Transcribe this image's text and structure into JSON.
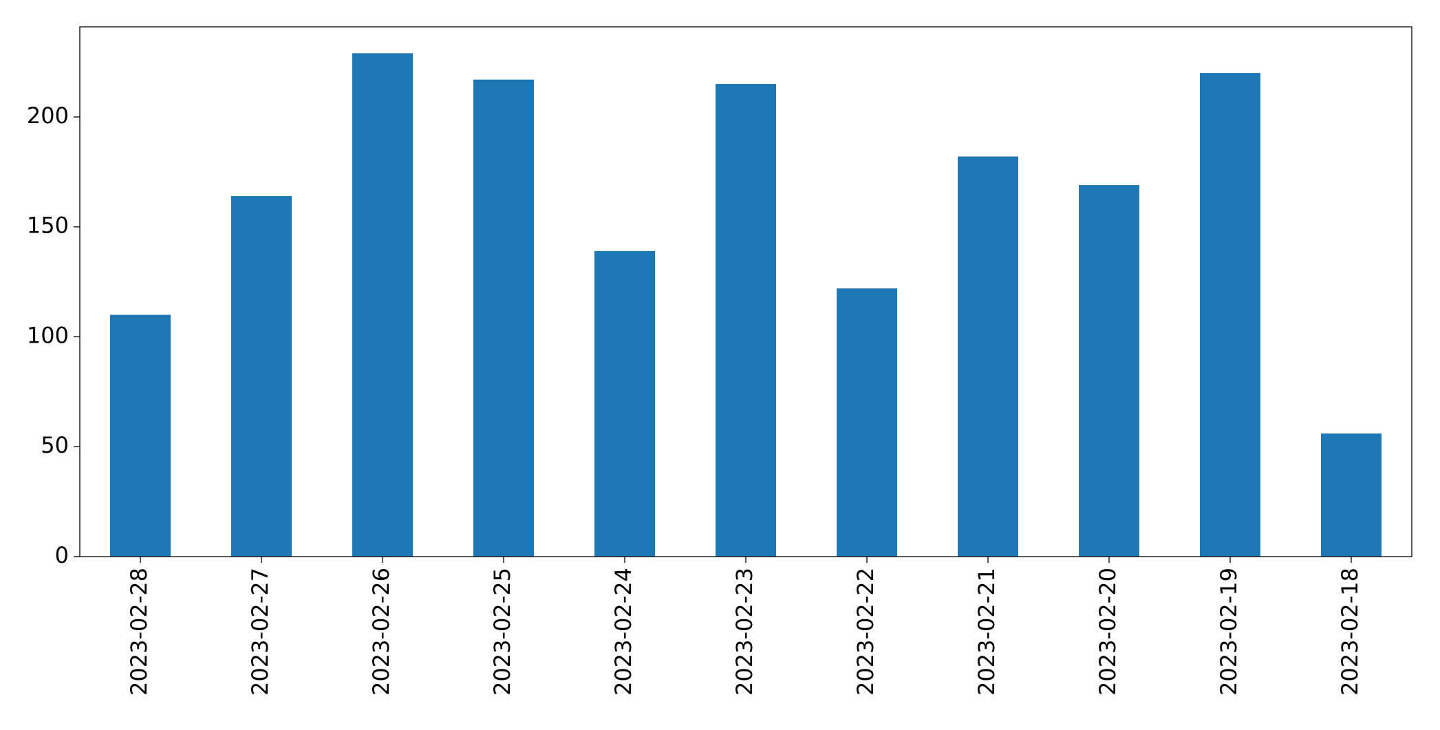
{
  "chart_data": {
    "type": "bar",
    "categories": [
      "2023-02-28",
      "2023-02-27",
      "2023-02-26",
      "2023-02-25",
      "2023-02-24",
      "2023-02-23",
      "2023-02-22",
      "2023-02-21",
      "2023-02-20",
      "2023-02-19",
      "2023-02-18"
    ],
    "values": [
      110,
      164,
      229,
      217,
      139,
      215,
      122,
      182,
      169,
      220,
      56
    ],
    "color": "#1f77b4",
    "ylim": [
      0,
      241
    ],
    "yticks": [
      0,
      50,
      100,
      150,
      200
    ],
    "grid": false
  }
}
